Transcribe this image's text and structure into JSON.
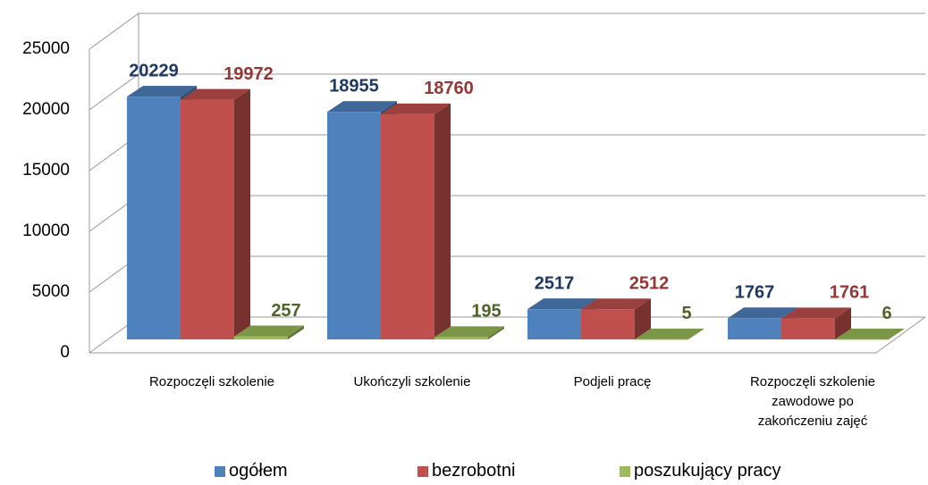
{
  "chart_data": {
    "type": "bar3d",
    "categories": [
      "Rozpoczęli szkolenie",
      "Ukończyli szkolenie",
      "Podjeli pracę",
      "Rozpoczęli szkolenie zawodowe po zakończeniu zajęć"
    ],
    "series": [
      {
        "name": "ogółem",
        "color": "#4f81bd",
        "label_color": "#1f3864",
        "values": [
          20229,
          18955,
          2517,
          1767
        ]
      },
      {
        "name": "bezrobotni",
        "color": "#c0504d",
        "label_color": "#943634",
        "values": [
          19972,
          18760,
          2512,
          1761
        ]
      },
      {
        "name": "poszukujący pracy",
        "color": "#9bbb59",
        "label_color": "#4f6228",
        "values": [
          257,
          195,
          5,
          6
        ]
      }
    ],
    "ylim": [
      0,
      25000
    ],
    "yticks": [
      0,
      5000,
      10000,
      15000,
      20000,
      25000
    ],
    "grid": true
  }
}
